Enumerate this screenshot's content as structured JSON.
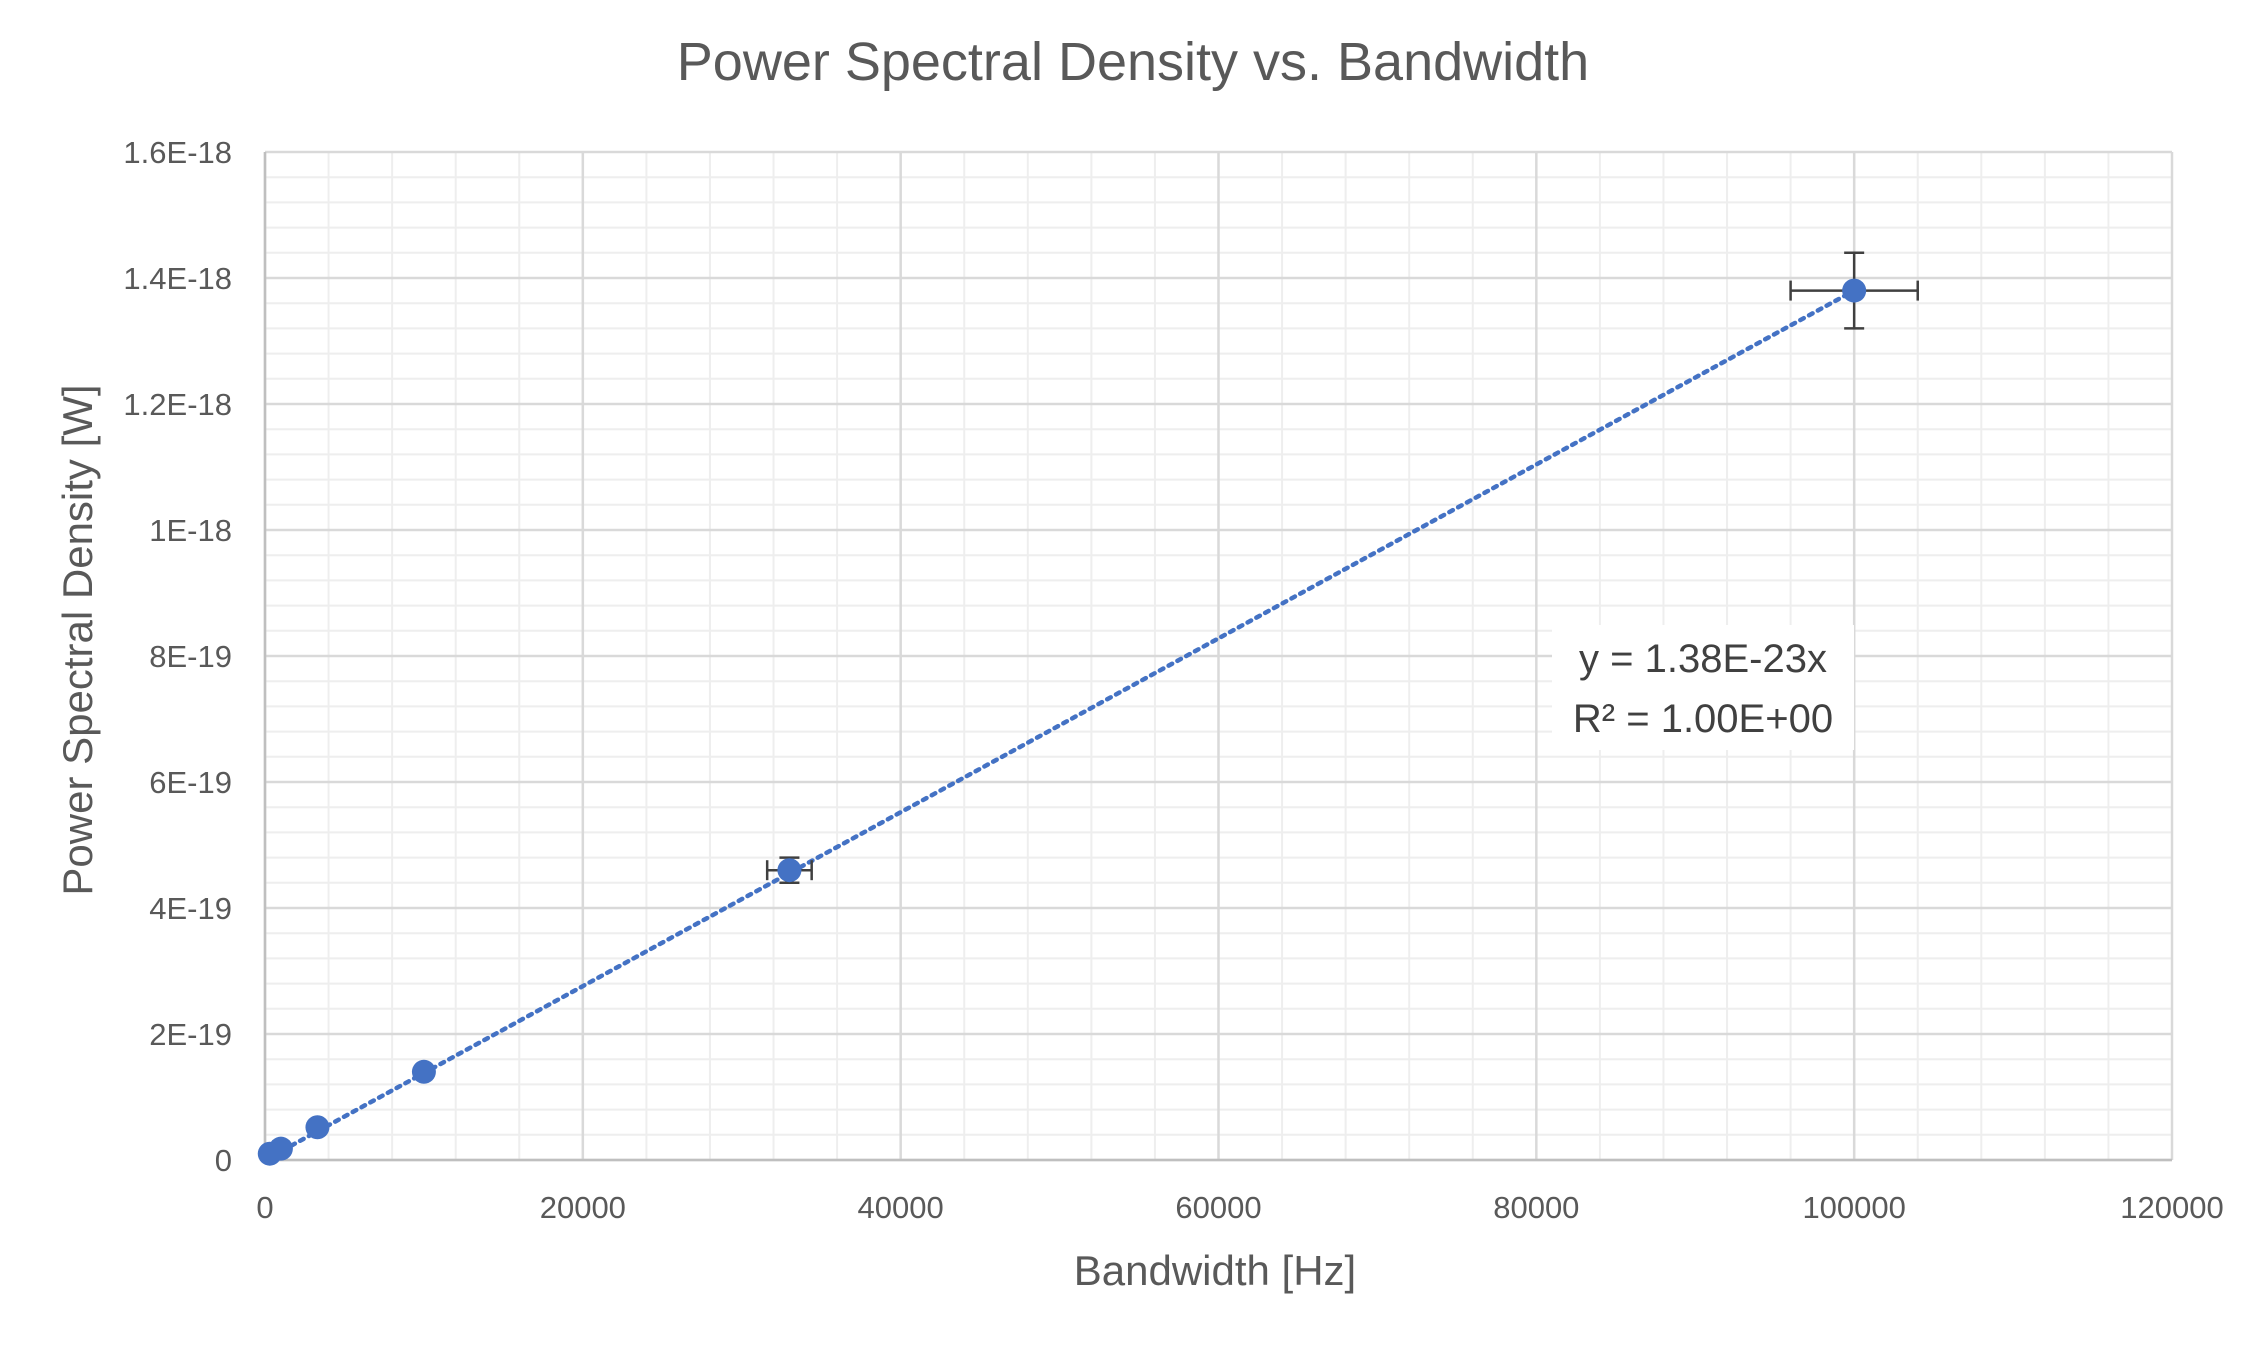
{
  "chart_data": {
    "type": "scatter",
    "title": "Power Spectral Density vs. Bandwidth",
    "xlabel": "Bandwidth [Hz]",
    "ylabel": "Power Spectral Density [W]",
    "xlim": [
      0,
      120000
    ],
    "ylim": [
      0,
      1.6e-18
    ],
    "x_major_step": 20000,
    "x_minor_step": 4000,
    "y_major_step": 2e-19,
    "y_minor_step": 4e-20,
    "x_tick_labels": [
      "0",
      "20000",
      "40000",
      "60000",
      "80000",
      "100000",
      "120000"
    ],
    "y_tick_labels": [
      "0",
      "2E-19",
      "4E-19",
      "6E-19",
      "8E-19",
      "1E-18",
      "1.2E-18",
      "1.4E-18",
      "1.6E-18"
    ],
    "grid": true,
    "legend": "none",
    "series": [
      {
        "color": "#4472c4",
        "points": [
          {
            "x": 300,
            "y": 1e-20,
            "xerr": 0,
            "yerr": 0
          },
          {
            "x": 1000,
            "y": 1.8e-20,
            "xerr": 0,
            "yerr": 0
          },
          {
            "x": 3300,
            "y": 5.2e-20,
            "xerr": 0,
            "yerr": 0
          },
          {
            "x": 10000,
            "y": 1.4e-19,
            "xerr": 0,
            "yerr": 0
          },
          {
            "x": 33000,
            "y": 4.6e-19,
            "xerr": 1400,
            "yerr": 2e-20
          },
          {
            "x": 100000,
            "y": 1.38e-18,
            "xerr": 4000,
            "yerr": 6e-20
          }
        ]
      }
    ],
    "trendline": {
      "type": "linear",
      "slope": 1.38e-23,
      "intercept": 0,
      "style": "dotted",
      "color": "#4472c4",
      "x_range": [
        0,
        100000
      ],
      "equation": "y = 1.38E-23x",
      "r_squared": "R² = 1.00E+00"
    }
  }
}
